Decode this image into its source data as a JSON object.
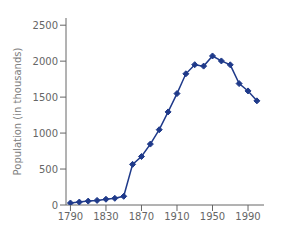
{
  "chart_data": {
    "type": "line",
    "x": [
      1790,
      1800,
      1810,
      1820,
      1830,
      1840,
      1850,
      1860,
      1870,
      1880,
      1890,
      1900,
      1910,
      1920,
      1930,
      1940,
      1950,
      1960,
      1970,
      1980,
      1990,
      2000
    ],
    "values": [
      28,
      41,
      54,
      64,
      80,
      93,
      121,
      565,
      674,
      847,
      1047,
      1294,
      1549,
      1824,
      1951,
      1931,
      2072,
      2003,
      1949,
      1688,
      1586,
      1448
    ],
    "color": "#1F3A8A",
    "marker": "diamond",
    "ylabel": "Population (in thousands)",
    "xlim": [
      1785,
      2008
    ],
    "ylim": [
      0,
      2600
    ],
    "xticks": [
      1790,
      1830,
      1870,
      1910,
      1950,
      1990
    ],
    "yticks": [
      0,
      500,
      1000,
      1500,
      2000,
      2500
    ],
    "grid": false
  }
}
